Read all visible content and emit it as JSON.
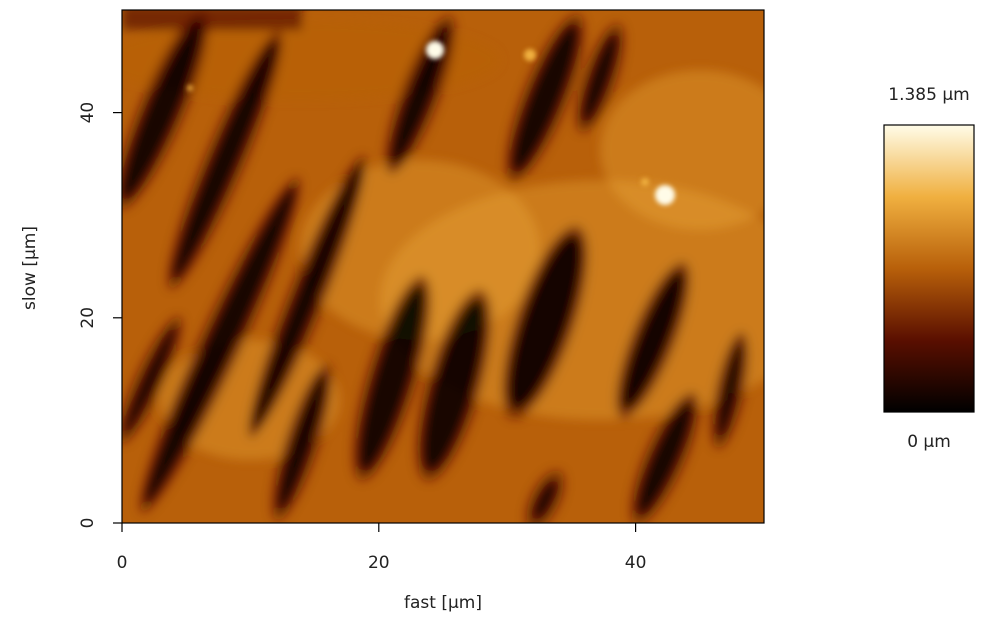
{
  "chart_data": {
    "type": "heatmap",
    "xlabel": "fast [µm]",
    "ylabel": "slow [µm]",
    "xlim": [
      0,
      50
    ],
    "ylim": [
      0,
      50
    ],
    "xticks": [
      0,
      20,
      40
    ],
    "yticks": [
      0,
      20,
      40
    ],
    "zlim": [
      0,
      1.385
    ],
    "colorbar_ticks": [
      {
        "value": 0,
        "label": "0 µm"
      },
      {
        "value": 1.385,
        "label": "1.385 µm"
      }
    ],
    "colormap": [
      "#000000",
      "#5a0f00",
      "#b8600a",
      "#f0b040",
      "#fffce8"
    ]
  }
}
